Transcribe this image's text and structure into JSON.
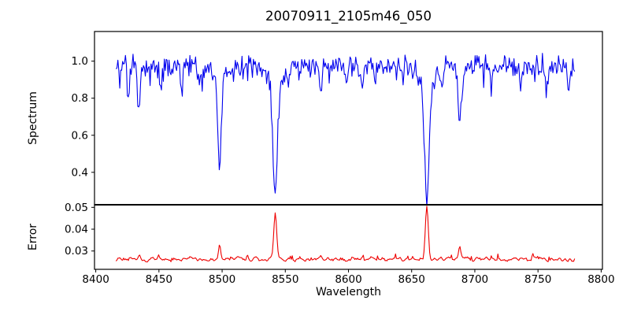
{
  "chart_data": {
    "type": "line",
    "title": "20070911_2105m46_050",
    "xlabel": "Wavelength",
    "xlim": [
      8399,
      8801
    ],
    "xticks": [
      8400,
      8450,
      8500,
      8550,
      8600,
      8650,
      8700,
      8750,
      8800
    ],
    "x_data_range": [
      8416,
      8779
    ],
    "sample_step": 0.75,
    "panels": [
      {
        "name": "spectrum",
        "ylabel": "Spectrum",
        "line_color": "#0000ee",
        "ylim": [
          0.225,
          1.16
        ],
        "yticks": [
          0.4,
          0.6,
          0.8,
          1.0
        ],
        "ytick_labels": [
          "0.4",
          "0.6",
          "0.8",
          "1.0"
        ],
        "continuum": 0.975,
        "noise_amplitude": 0.07,
        "dip_probability": 0.12,
        "dip_amplitude": 0.09,
        "seed": 20070911,
        "absorption_lines": [
          {
            "center": 8426,
            "depth": 0.14,
            "width": 1.2
          },
          {
            "center": 8434,
            "depth": 0.2,
            "width": 1.5
          },
          {
            "center": 8451,
            "depth": 0.1,
            "width": 1.2
          },
          {
            "center": 8468,
            "depth": 0.13,
            "width": 1.3
          },
          {
            "center": 8482,
            "depth": 0.1,
            "width": 1.2
          },
          {
            "center": 8498,
            "depth": 0.42,
            "width": 2.0
          },
          {
            "center": 8498,
            "depth": 0.08,
            "width": 6.0
          },
          {
            "center": 8514,
            "depth": 0.1,
            "width": 1.2
          },
          {
            "center": 8542,
            "depth": 0.57,
            "width": 2.4
          },
          {
            "center": 8542,
            "depth": 0.11,
            "width": 7.0
          },
          {
            "center": 8578,
            "depth": 0.11,
            "width": 1.3
          },
          {
            "center": 8598,
            "depth": 0.09,
            "width": 1.2
          },
          {
            "center": 8611,
            "depth": 0.13,
            "width": 1.4
          },
          {
            "center": 8621,
            "depth": 0.09,
            "width": 1.2
          },
          {
            "center": 8662,
            "depth": 0.6,
            "width": 2.4
          },
          {
            "center": 8662,
            "depth": 0.12,
            "width": 7.0
          },
          {
            "center": 8674,
            "depth": 0.1,
            "width": 1.2
          },
          {
            "center": 8688,
            "depth": 0.33,
            "width": 1.8
          },
          {
            "center": 8713,
            "depth": 0.1,
            "width": 1.3
          },
          {
            "center": 8736,
            "depth": 0.09,
            "width": 1.2
          },
          {
            "center": 8757,
            "depth": 0.1,
            "width": 1.2
          },
          {
            "center": 8774,
            "depth": 0.15,
            "width": 1.3
          }
        ]
      },
      {
        "name": "error",
        "ylabel": "Error",
        "line_color": "#ee0000",
        "ylim": [
          0.0216,
          0.0512
        ],
        "yticks": [
          0.03,
          0.04,
          0.05
        ],
        "ytick_labels": [
          "0.03",
          "0.04",
          "0.05"
        ],
        "baseline": 0.0262,
        "noise_amplitude": 0.0022,
        "bump_probability": 0.08,
        "bump_amplitude": 0.0018,
        "seed": 2105,
        "error_peaks": [
          {
            "center": 8434,
            "height": 0.0013,
            "width": 1.2
          },
          {
            "center": 8498,
            "height": 0.0068,
            "width": 1.1
          },
          {
            "center": 8515,
            "height": 0.0012,
            "width": 1.0
          },
          {
            "center": 8542,
            "height": 0.0205,
            "width": 1.6
          },
          {
            "center": 8578,
            "height": 0.0012,
            "width": 1.1
          },
          {
            "center": 8611,
            "height": 0.0013,
            "width": 1.1
          },
          {
            "center": 8662,
            "height": 0.0243,
            "width": 1.6
          },
          {
            "center": 8688,
            "height": 0.0063,
            "width": 1.2
          },
          {
            "center": 8713,
            "height": 0.0013,
            "width": 1.1
          },
          {
            "center": 8749,
            "height": 0.0012,
            "width": 1.1
          }
        ]
      }
    ],
    "axis_color": "#000000",
    "background_color": "#ffffff"
  }
}
